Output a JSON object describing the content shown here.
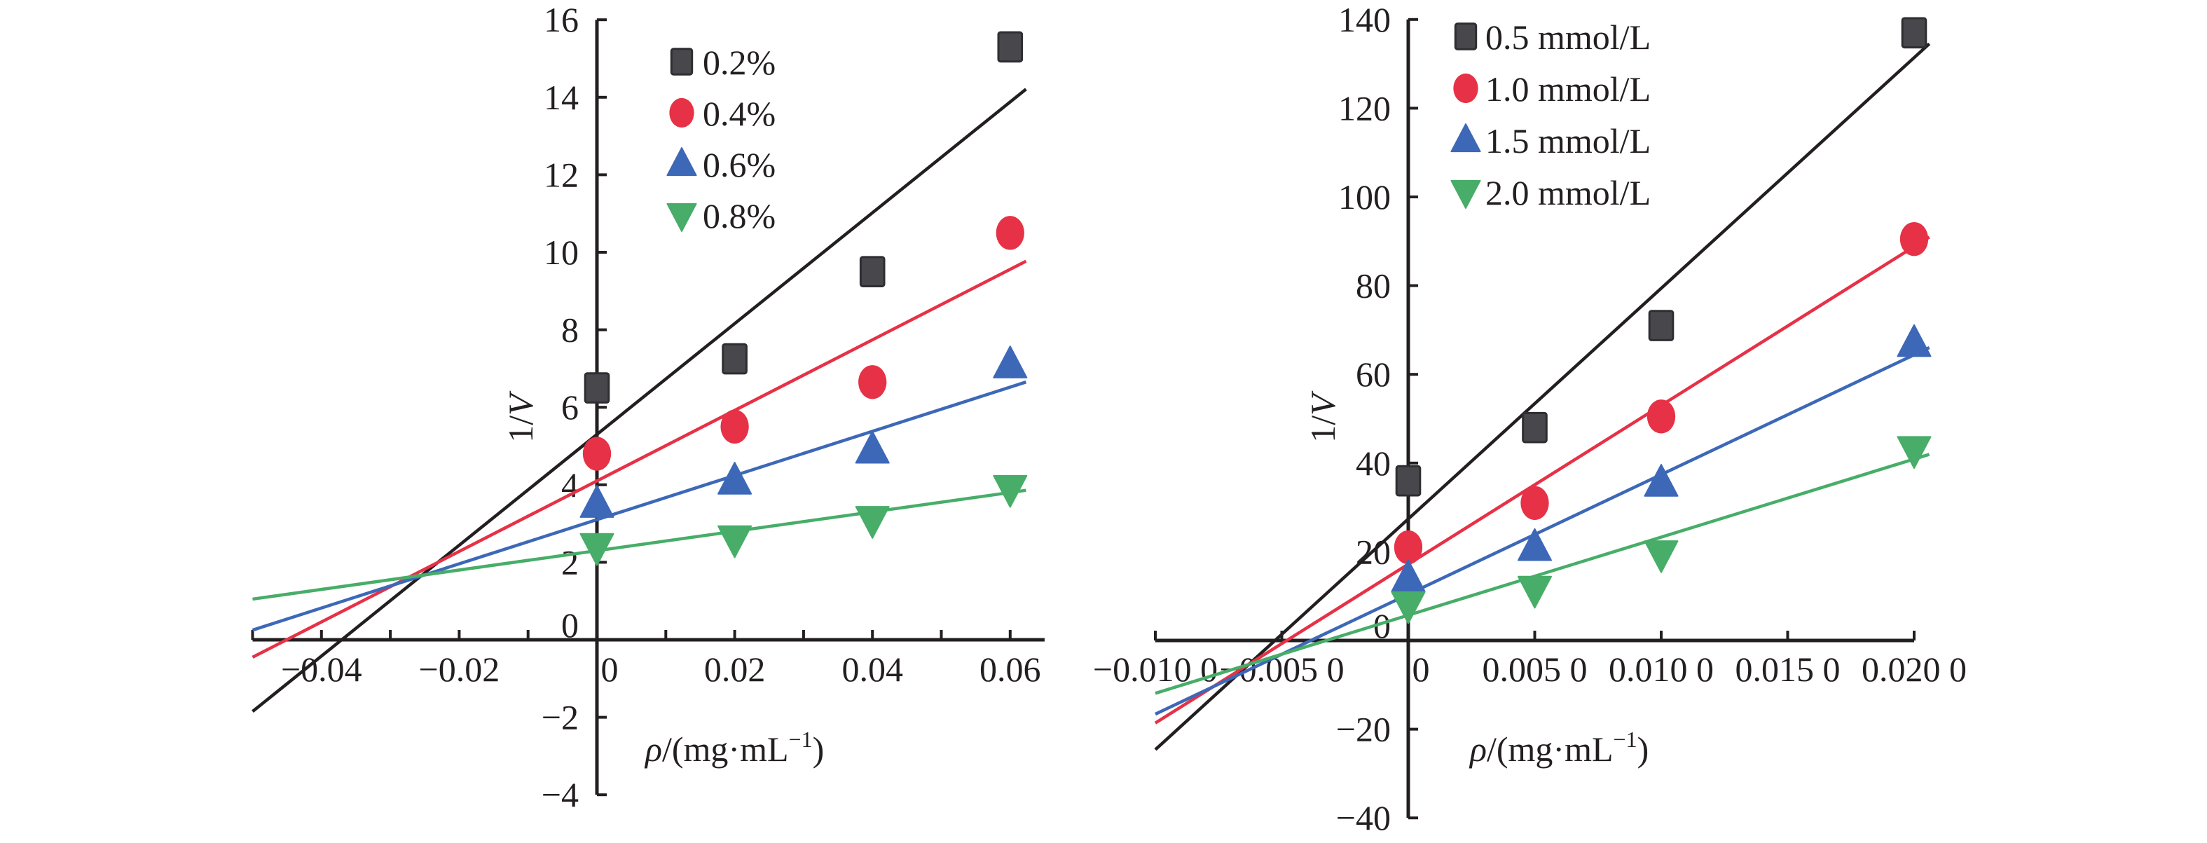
{
  "chart_data": [
    {
      "type": "scatter",
      "title": "",
      "xlabel": "ρ/(mg·mL⁻¹)",
      "xlabel_parts": {
        "symbol": "ρ",
        "unit_main": "/(mg·mL",
        "unit_sup": "−1",
        "unit_close": ")"
      },
      "ylabel": "1/V",
      "ylabel_parts": {
        "prefix": "1/",
        "symbol": "V"
      },
      "xlim": [
        -0.05,
        0.065
      ],
      "ylim": [
        -4,
        16
      ],
      "x_ticks": [
        -0.05,
        -0.04,
        -0.03,
        -0.02,
        -0.01,
        0,
        0.01,
        0.02,
        0.03,
        0.04,
        0.05,
        0.06
      ],
      "x_tick_labels": [
        {
          "value": -0.04,
          "label": "−0.04"
        },
        {
          "value": -0.02,
          "label": "−0.02"
        },
        {
          "value": 0,
          "label": "0"
        },
        {
          "value": 0.02,
          "label": "0.02"
        },
        {
          "value": 0.04,
          "label": "0.04"
        },
        {
          "value": 0.06,
          "label": "0.06"
        }
      ],
      "y_ticks": [
        {
          "value": -4,
          "label": "−4"
        },
        {
          "value": -2,
          "label": "−2"
        },
        {
          "value": 0,
          "label": "0"
        },
        {
          "value": 2,
          "label": "2"
        },
        {
          "value": 4,
          "label": "4"
        },
        {
          "value": 6,
          "label": "6"
        },
        {
          "value": 8,
          "label": "8"
        },
        {
          "value": 10,
          "label": "10"
        },
        {
          "value": 12,
          "label": "12"
        },
        {
          "value": 14,
          "label": "14"
        },
        {
          "value": 16,
          "label": "16"
        }
      ],
      "grid": false,
      "legend_position": "top-right",
      "x": [
        0,
        0.02,
        0.04,
        0.06
      ],
      "series": [
        {
          "name": "0.2%",
          "marker": "square",
          "color": "#47474c",
          "line_color": "#231f20",
          "values": [
            6.5,
            7.25,
            9.5,
            15.3
          ],
          "fit": {
            "intercept": 5.3,
            "slope": 143
          }
        },
        {
          "name": "0.4%",
          "marker": "circle",
          "color": "#e63146",
          "line_color": "#e63146",
          "values": [
            4.8,
            5.5,
            6.65,
            10.5
          ],
          "fit": {
            "intercept": 4.1,
            "slope": 91
          }
        },
        {
          "name": "0.6%",
          "marker": "triangle-up",
          "color": "#3d68b8",
          "line_color": "#3d68b8",
          "values": [
            3.5,
            4.1,
            4.9,
            7.1
          ],
          "fit": {
            "intercept": 3.1,
            "slope": 57
          }
        },
        {
          "name": "0.8%",
          "marker": "triangle-down",
          "color": "#47ad68",
          "line_color": "#47ad68",
          "values": [
            2.4,
            2.6,
            3.1,
            3.9
          ],
          "fit": {
            "intercept": 2.3,
            "slope": 25
          }
        }
      ],
      "fit_x_range": [
        -0.05,
        0.0623
      ]
    },
    {
      "type": "scatter",
      "title": "",
      "xlabel": "ρ/(mg·mL⁻¹)",
      "xlabel_parts": {
        "symbol": "ρ",
        "unit_main": "/(mg·mL",
        "unit_sup": "−1",
        "unit_close": ")"
      },
      "ylabel": "1/V",
      "ylabel_parts": {
        "prefix": "1/",
        "symbol": "V"
      },
      "xlim": [
        -0.01,
        0.02
      ],
      "ylim": [
        -40,
        140
      ],
      "x_ticks": [
        -0.01,
        -0.005,
        0,
        0.005,
        0.01,
        0.015,
        0.02
      ],
      "x_tick_labels": [
        {
          "value": -0.01,
          "label": "−0.010 0"
        },
        {
          "value": -0.005,
          "label": "−0.005 0"
        },
        {
          "value": 0,
          "label": "0"
        },
        {
          "value": 0.005,
          "label": "0.005 0"
        },
        {
          "value": 0.01,
          "label": "0.010 0"
        },
        {
          "value": 0.015,
          "label": "0.015 0"
        },
        {
          "value": 0.02,
          "label": "0.020 0"
        }
      ],
      "y_ticks": [
        {
          "value": -40,
          "label": "−40"
        },
        {
          "value": -20,
          "label": "−20"
        },
        {
          "value": 0,
          "label": "0"
        },
        {
          "value": 20,
          "label": "20"
        },
        {
          "value": 40,
          "label": "40"
        },
        {
          "value": 60,
          "label": "60"
        },
        {
          "value": 80,
          "label": "80"
        },
        {
          "value": 100,
          "label": "100"
        },
        {
          "value": 120,
          "label": "120"
        },
        {
          "value": 140,
          "label": "140"
        }
      ],
      "grid": false,
      "legend_position": "top-left",
      "x": [
        0,
        0.005,
        0.01,
        0.02
      ],
      "series": [
        {
          "name": "0.5 mmol/L",
          "marker": "square",
          "color": "#47474c",
          "line_color": "#231f20",
          "values": [
            36,
            48,
            71,
            137
          ],
          "fit": {
            "intercept": 27.4,
            "slope": 5200
          }
        },
        {
          "name": "1.0 mmol/L",
          "marker": "circle",
          "color": "#e63146",
          "line_color": "#e63146",
          "values": [
            21,
            31,
            50.5,
            90.5
          ],
          "fit": {
            "intercept": 17.2,
            "slope": 3580
          }
        },
        {
          "name": "1.5 mmol/L",
          "marker": "triangle-up",
          "color": "#3d68b8",
          "line_color": "#3d68b8",
          "values": [
            14,
            21,
            35.5,
            67
          ],
          "fit": {
            "intercept": 10.4,
            "slope": 2700
          }
        },
        {
          "name": "2.0 mmol/L",
          "marker": "triangle-down",
          "color": "#47ad68",
          "line_color": "#47ad68",
          "values": [
            8,
            11.5,
            19.5,
            43
          ],
          "fit": {
            "intercept": 5.7,
            "slope": 1760
          }
        }
      ],
      "fit_x_range": [
        -0.01,
        0.0206
      ]
    }
  ]
}
